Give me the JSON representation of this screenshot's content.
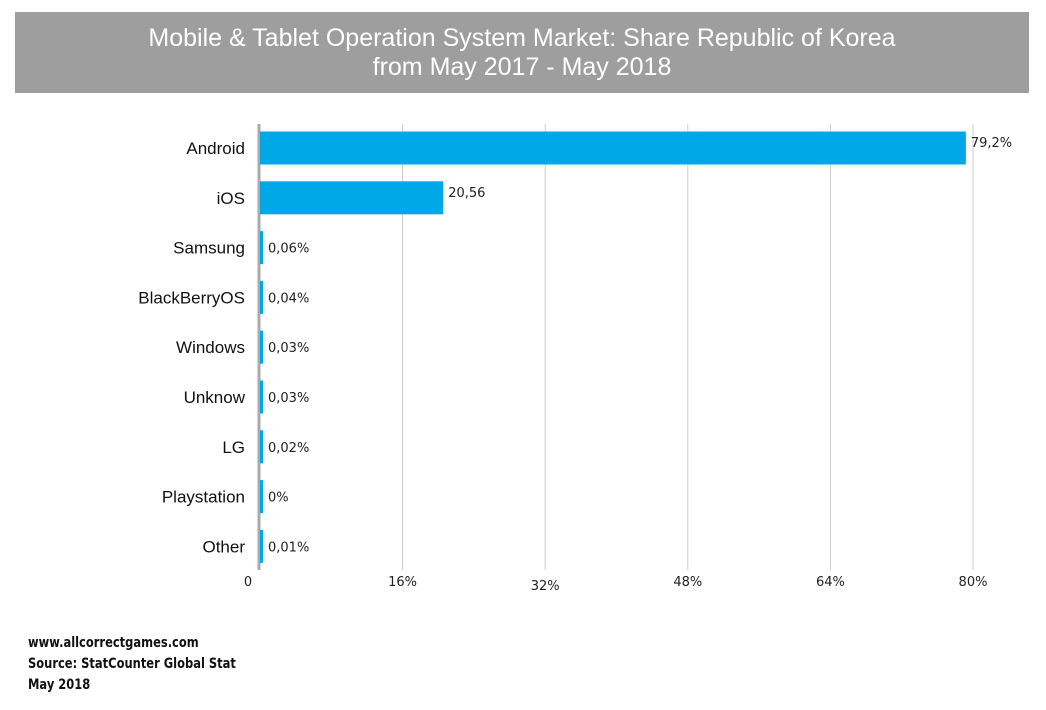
{
  "chart_data": {
    "type": "bar",
    "orientation": "horizontal",
    "title_line1": "Mobile & Tablet Operation System Market: Share Republic of Korea",
    "title_line2": "from May 2017 - May 2018",
    "categories": [
      "Android",
      "iOS",
      "Samsung",
      "BlackBerryOS",
      "Windows",
      "Unknow",
      "LG",
      "Playstation",
      "Other"
    ],
    "values": [
      79.2,
      20.56,
      0.06,
      0.04,
      0.03,
      0.03,
      0.02,
      0,
      0.01
    ],
    "data_labels": [
      "79,2%",
      "20,56",
      "0,06%",
      "0,04%",
      "0,03%",
      "0,03%",
      "0,02%",
      "0%",
      "0,01%"
    ],
    "x_ticks": [
      0,
      16,
      32,
      48,
      64,
      80
    ],
    "x_tick_labels": [
      "0",
      "16%",
      "32%",
      "48%",
      "64%",
      "80%"
    ],
    "xlim": [
      0,
      80
    ],
    "grid": "vertical",
    "bar_color": "#00a8e8"
  },
  "footer": {
    "line1": "www.allcorrectgames.com",
    "line2": "Source: StatCounter Global Stat",
    "line3": "May 2018"
  },
  "colors": {
    "title_background": "#9e9e9e",
    "title_text": "#ffffff",
    "gridline": "#cccccc",
    "axis_line": "#aaaaaa"
  }
}
